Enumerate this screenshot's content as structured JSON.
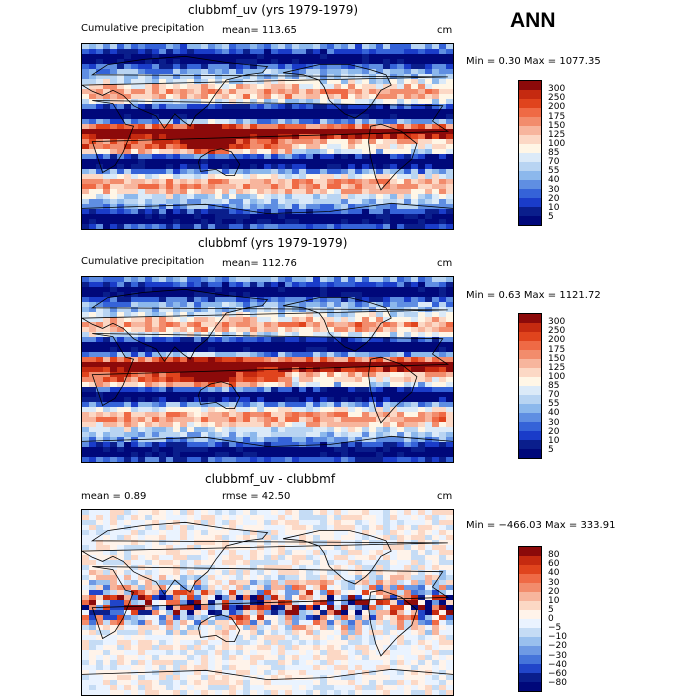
{
  "season": "ANN",
  "units": "cm",
  "panels": [
    {
      "title": "clubbmf_uv (yrs 1979-1979)",
      "subtitle": "Cumulative precipitation",
      "stat_text": "mean= 113.65",
      "units": "cm",
      "minmax_text": "Min =    0.30 Max = 1077.35",
      "field_type": "abs",
      "colorbar_labels": [
        "300",
        "250",
        "200",
        "175",
        "150",
        "125",
        "100",
        "85",
        "70",
        "55",
        "40",
        "30",
        "20",
        "10",
        "5"
      ],
      "colorbar_colors": [
        "#8c0a0a",
        "#c52a10",
        "#e0441d",
        "#ef6a45",
        "#f28c6c",
        "#f7b59d",
        "#fcd8c5",
        "#fff6e6",
        "#dbeaf8",
        "#b8d4f2",
        "#8cb8ec",
        "#5f8ee2",
        "#3563d8",
        "#1a3cc9",
        "#0a1e8c",
        "#00087a"
      ]
    },
    {
      "title": "clubbmf (yrs 1979-1979)",
      "subtitle": "Cumulative precipitation",
      "stat_text": "mean= 112.76",
      "units": "cm",
      "minmax_text": "Min =    0.63 Max = 1121.72",
      "field_type": "abs",
      "colorbar_labels": [
        "300",
        "250",
        "200",
        "175",
        "150",
        "125",
        "100",
        "85",
        "70",
        "55",
        "40",
        "30",
        "20",
        "10",
        "5"
      ],
      "colorbar_colors": [
        "#8c0a0a",
        "#c52a10",
        "#e0441d",
        "#ef6a45",
        "#f28c6c",
        "#f7b59d",
        "#fcd8c5",
        "#fff6e6",
        "#dbeaf8",
        "#b8d4f2",
        "#8cb8ec",
        "#5f8ee2",
        "#3563d8",
        "#1a3cc9",
        "#0a1e8c",
        "#00087a"
      ]
    },
    {
      "title": "clubbmf_uv - clubbmf",
      "mean_text": "mean =    0.89",
      "rmse_text": "rmse =   42.50",
      "units": "cm",
      "minmax_text": "Min = −466.03 Max =  333.91",
      "field_type": "diff",
      "colorbar_labels": [
        "80",
        "60",
        "40",
        "30",
        "20",
        "10",
        "5",
        "0",
        "−5",
        "−10",
        "−20",
        "−30",
        "−40",
        "−60",
        "−80"
      ],
      "colorbar_colors": [
        "#8c0a0a",
        "#c52a10",
        "#e0441d",
        "#ef6a45",
        "#f28c6c",
        "#f7b59d",
        "#fcd8c5",
        "#fff3ea",
        "#eaf3ff",
        "#c5dcf5",
        "#99c0ee",
        "#6e9ae4",
        "#4574da",
        "#2145c9",
        "#0a1e8c",
        "#00087a"
      ]
    }
  ]
}
